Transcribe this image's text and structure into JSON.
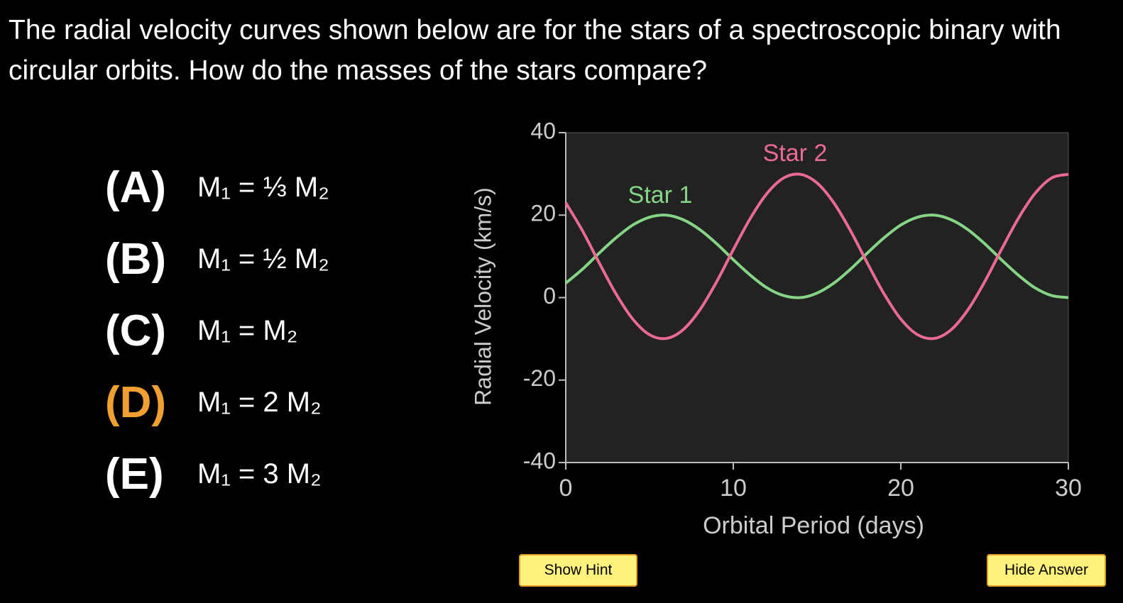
{
  "question": "The radial velocity curves shown below are for the stars of a spectroscopic binary with circular orbits. How do the masses of the stars compare?",
  "options": [
    {
      "letter": "(A)",
      "text": "M₁ = ⅓ M₂"
    },
    {
      "letter": "(B)",
      "text": "M₁ = ½ M₂"
    },
    {
      "letter": "(C)",
      "text": "M₁ = M₂"
    },
    {
      "letter": "(D)",
      "text": "M₁ = 2 M₂"
    },
    {
      "letter": "(E)",
      "text": "M₁ = 3 M₂"
    }
  ],
  "highlighted_option": 3,
  "buttons": [
    "Show Hint",
    "Hide Answer"
  ],
  "chart_data": {
    "type": "line",
    "xlabel": "Orbital Period (days)",
    "ylabel": "Radial Velocity (km/s)",
    "x": [
      0,
      1,
      2,
      3,
      4,
      5,
      6,
      7,
      8,
      9,
      10,
      11,
      12,
      13,
      14,
      15,
      16,
      17,
      18,
      19,
      20,
      21,
      22,
      23,
      24,
      25,
      26,
      27,
      28,
      29,
      30
    ],
    "series": [
      {
        "name": "Star 1",
        "color": "#86d486",
        "values": [
          3.5,
          6.9,
          10.8,
          14.5,
          17.6,
          19.5,
          20.0,
          18.9,
          16.5,
          13.1,
          9.2,
          5.5,
          2.4,
          0.5,
          0.0,
          1.1,
          3.5,
          6.9,
          10.8,
          14.5,
          17.6,
          19.5,
          20.0,
          18.9,
          16.5,
          13.1,
          9.2,
          5.5,
          2.4,
          0.5,
          0.0
        ]
      },
      {
        "name": "Star 2",
        "color": "#ea6a92",
        "values": [
          23.0,
          16.2,
          8.4,
          0.9,
          -5.2,
          -9.0,
          -9.9,
          -7.8,
          -3.0,
          3.8,
          11.6,
          19.1,
          25.2,
          29.0,
          29.9,
          27.8,
          23.0,
          16.2,
          8.4,
          0.9,
          -5.2,
          -9.0,
          -9.9,
          -7.8,
          -3.0,
          3.8,
          11.6,
          19.1,
          25.2,
          29.0,
          29.9
        ]
      }
    ],
    "xlim": [
      0,
      30
    ],
    "xticks": [
      0,
      10,
      20,
      30
    ],
    "ylim": [
      -40,
      40
    ],
    "yticks": [
      -40,
      -20,
      0,
      20,
      40
    ],
    "grid": false
  }
}
